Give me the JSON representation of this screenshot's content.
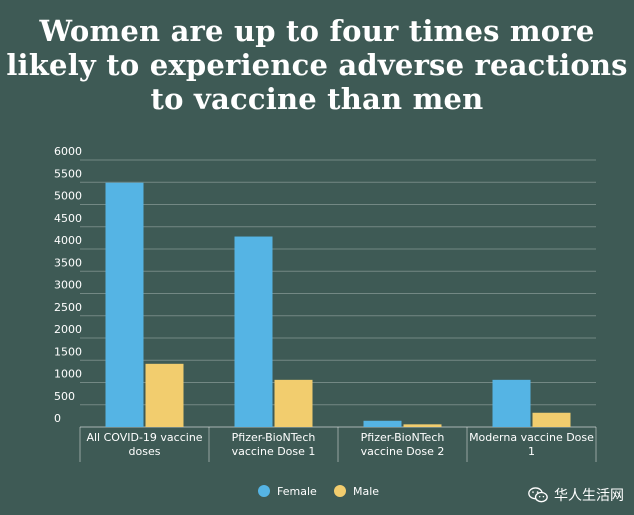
{
  "chart_data": {
    "type": "bar",
    "title_lines": [
      "Women are up to four times more",
      "likely to experience adverse reactions",
      "to vaccine than men"
    ],
    "categories": [
      [
        "All COVID-19 vaccine",
        "doses"
      ],
      [
        "Pfizer-BioNTech",
        "vaccine Dose 1"
      ],
      [
        "Pfizer-BioNTech",
        "vaccine Dose 2"
      ],
      [
        "Moderna vaccine Dose",
        "1"
      ]
    ],
    "series": [
      {
        "name": "Female",
        "color": "#55b4e4",
        "values": [
          5490,
          4280,
          140,
          1060
        ]
      },
      {
        "name": "Male",
        "color": "#f2cd6e",
        "values": [
          1420,
          1060,
          60,
          320
        ]
      }
    ],
    "ylim": [
      0,
      6000
    ],
    "yticks": [
      0,
      500,
      1000,
      1500,
      2000,
      2500,
      3000,
      3500,
      4000,
      4500,
      5000,
      5500,
      6000
    ],
    "grid": true,
    "legend_position": "bottom-center"
  },
  "watermark": {
    "text": "华人生活网",
    "icon": "wechat-icon"
  }
}
